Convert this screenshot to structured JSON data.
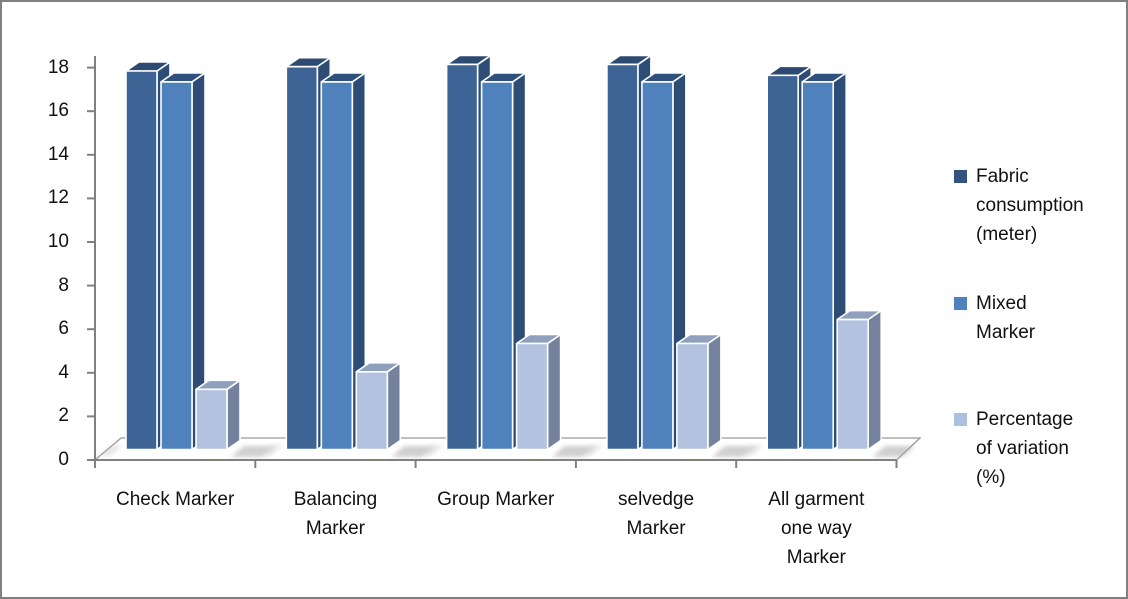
{
  "chart_data": {
    "type": "bar",
    "projection": "3d-clustered-column",
    "title": "",
    "xlabel": "",
    "ylabel": "",
    "grid": false,
    "legend_position": "right",
    "ylim": [
      0,
      18
    ],
    "y_ticks": [
      0,
      2,
      4,
      6,
      8,
      10,
      12,
      14,
      16,
      18
    ],
    "categories": [
      "Check Marker",
      "Balancing Marker",
      "Group Marker",
      "selvedge Marker",
      "All garment one way Marker"
    ],
    "category_display_lines": [
      [
        "Check Marker"
      ],
      [
        "Balancing",
        "Marker"
      ],
      [
        "Group Marker"
      ],
      [
        "selvedge",
        "Marker"
      ],
      [
        "All garment",
        "one way",
        "Marker"
      ]
    ],
    "series": [
      {
        "name": "Fabric consumption (meter)",
        "legend_display_lines": [
          "Fabric",
          "consumption",
          "(meter)"
        ],
        "values": [
          17.5,
          17.7,
          17.8,
          17.8,
          17.3
        ],
        "colors": {
          "front": "#3E6496",
          "top": "#2C4A72",
          "side": "#2E4D76",
          "swatch": "#31537E"
        }
      },
      {
        "name": "Mixed Marker",
        "legend_display_lines": [
          "Mixed",
          "Marker"
        ],
        "values": [
          17.0,
          17.0,
          17.0,
          17.0,
          17.0
        ],
        "colors": {
          "front": "#4F81BD",
          "top": "#30517C",
          "side": "#2E4D76",
          "swatch": "#4F81BD"
        }
      },
      {
        "name": "Percentage of variation (%)",
        "legend_display_lines": [
          "Percentage",
          "of variation",
          "(%)"
        ],
        "values": [
          2.9,
          3.7,
          5.0,
          5.0,
          6.1
        ],
        "colors": {
          "front": "#B3C2DF",
          "top": "#8FA0BF",
          "side": "#75829E",
          "swatch": "#AEC0DF"
        }
      }
    ]
  },
  "frame": {
    "border_color": "#808080",
    "background": "#FFFFFF",
    "axis_color": "#808080",
    "text_color": "#111111"
  }
}
